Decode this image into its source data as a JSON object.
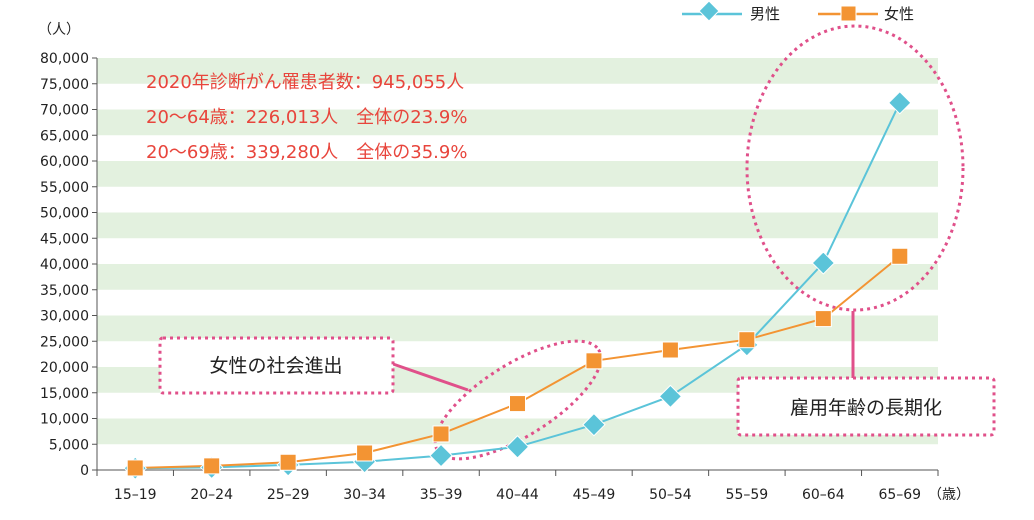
{
  "chart_data": {
    "type": "line",
    "y_unit_label": "（人）",
    "x_unit_label": "（歳）",
    "categories": [
      "15–19",
      "20–24",
      "25–29",
      "30–34",
      "35–39",
      "40–44",
      "45–49",
      "50–54",
      "55–59",
      "60–64",
      "65–69"
    ],
    "y_ticks": [
      "0",
      "5,000",
      "10,000",
      "15,000",
      "20,000",
      "25,000",
      "30,000",
      "35,000",
      "40,000",
      "45,000",
      "50,000",
      "55,000",
      "60,000",
      "65,000",
      "70,000",
      "75,000",
      "80,000"
    ],
    "ylim": [
      0,
      80000
    ],
    "grid": "alternating horizontal bands",
    "legend_position": "top-right",
    "series": [
      {
        "name": "男性",
        "color": "#5bc4d9",
        "marker": "diamond",
        "values": [
          350,
          500,
          1000,
          1600,
          2800,
          4500,
          8800,
          14300,
          24300,
          40200,
          71300
        ]
      },
      {
        "name": "女性",
        "color": "#f39433",
        "marker": "square",
        "values": [
          400,
          800,
          1500,
          3300,
          7000,
          12900,
          21200,
          23300,
          25300,
          29400,
          41500
        ]
      }
    ],
    "band_color": "#e3f1df"
  },
  "stats": {
    "line1": "2020年診断がん罹患者数：945,055人",
    "line2": "20〜64歳：226,013人　全体の23.9%",
    "line3": "20〜69歳：339,280人　全体の35.9%"
  },
  "callouts": {
    "women": "女性の社会進出",
    "employment": "雇用年齢の長期化",
    "accent": "#e0508a"
  }
}
